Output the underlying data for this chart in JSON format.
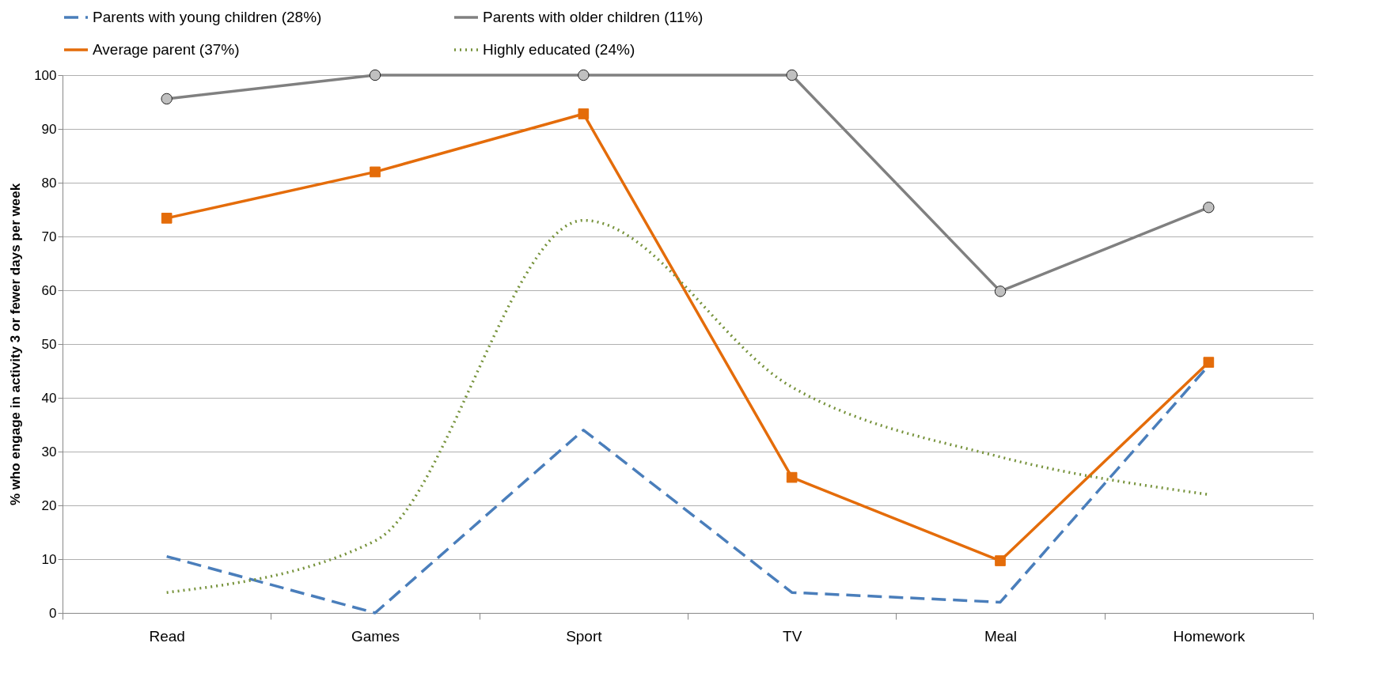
{
  "chart_data": {
    "type": "line",
    "ylabel": "% who engage in activity 3 or fewer days per week",
    "categories": [
      "Read",
      "Games",
      "Sport",
      "TV",
      "Meal",
      "Homework"
    ],
    "series": [
      {
        "name": "Parents with young children (28%)",
        "color": "#4a7ebb",
        "line_style": "dashed",
        "marker": "none",
        "values": [
          10.5,
          0,
          34,
          3.8,
          2,
          46
        ]
      },
      {
        "name": "Parents with older children (11%)",
        "color": "#808080",
        "line_style": "solid",
        "marker": "circle",
        "values": [
          95.6,
          100,
          100,
          100,
          59.8,
          75.4
        ]
      },
      {
        "name": "Average parent (37%)",
        "color": "#e46c0a",
        "line_style": "solid",
        "marker": "square",
        "values": [
          73.4,
          82,
          92.8,
          25.2,
          9.7,
          46.6
        ]
      },
      {
        "name": "Highly educated (24%)",
        "color": "#77933c",
        "line_style": "dotted",
        "marker": "none",
        "values": [
          3.8,
          13.4,
          73,
          42,
          29,
          22
        ]
      }
    ],
    "ylim": [
      0,
      100
    ],
    "yticks": [
      0,
      10,
      20,
      30,
      40,
      50,
      60,
      70,
      80,
      90,
      100
    ],
    "grid": "y",
    "legend": "top"
  }
}
